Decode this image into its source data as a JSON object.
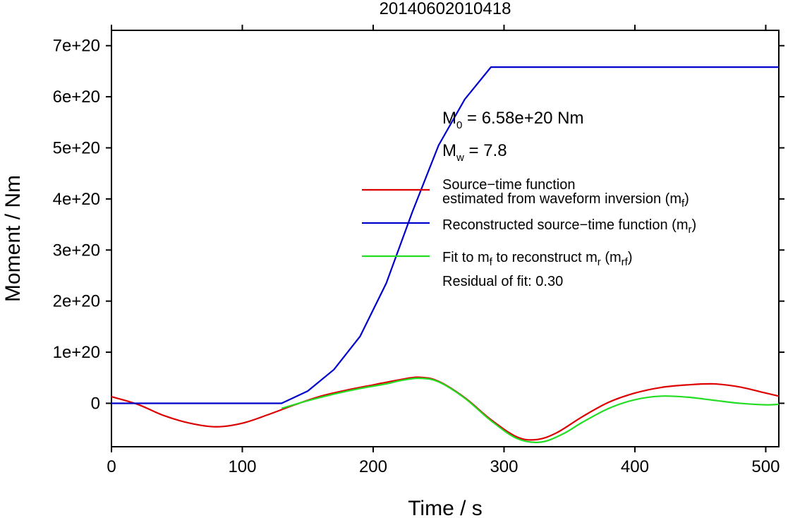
{
  "chart_data": {
    "type": "line",
    "title": "20140602010418",
    "xlabel": "Time / s",
    "ylabel": "Moment / Nm",
    "xlim": [
      0,
      510
    ],
    "ylim": [
      -8.5e+19,
      7.3e+20
    ],
    "xticks": [
      0,
      100,
      200,
      300,
      400,
      500
    ],
    "xtick_labels": [
      "0",
      "100",
      "200",
      "300",
      "400",
      "500"
    ],
    "yticks": [
      0,
      1e+20,
      2e+20,
      3e+20,
      4e+20,
      5e+20,
      6e+20,
      7e+20
    ],
    "ytick_labels": [
      "0",
      "1e+20",
      "2e+20",
      "3e+20",
      "4e+20",
      "5e+20",
      "6e+20",
      "7e+20"
    ],
    "grid": false,
    "annotations": {
      "m0_sym": "M",
      "m0_sub": "0",
      "m0_text": " = 6.58e+20 Nm",
      "mw_sym": "M",
      "mw_sub": "w",
      "mw_text": " = 7.8",
      "residual": "Residual of fit: 0.30"
    },
    "legend": {
      "position": "right",
      "entries": [
        {
          "color": "#dd0000",
          "line1": "Source−time function",
          "line2_pre": "estimated from waveform inversion (m",
          "line2_sub": "f",
          "line2_post": ")"
        },
        {
          "color": "#0000cc",
          "line1_pre": "Reconstructed source−time function (m",
          "line1_sub": "r",
          "line1_post": ")"
        },
        {
          "color": "#22dd22",
          "line1_a": "Fit to m",
          "line1_a_sub": "f",
          "line1_b": " to reconstruct m",
          "line1_b_sub": "r",
          "line1_c": " (m",
          "line1_c_sub": "rf",
          "line1_d": ")"
        }
      ]
    },
    "series": [
      {
        "color": "#dd0000",
        "x": [
          0,
          20,
          40,
          60,
          80,
          100,
          120,
          140,
          160,
          180,
          200,
          220,
          235,
          250,
          270,
          290,
          310,
          325,
          340,
          360,
          380,
          400,
          420,
          440,
          460,
          480,
          500,
          510
        ],
        "values": [
          1.3e+19,
          -2e+18,
          -2.4e+19,
          -3.9e+19,
          -4.6e+19,
          -3.9e+19,
          -2.2e+19,
          -3e+18,
          1.4e+19,
          2.6e+19,
          3.6e+19,
          4.6e+19,
          5.1e+19,
          4.3e+19,
          1.1e+19,
          -3.2e+19,
          -6.6e+19,
          -7.1e+19,
          -5.8e+19,
          -2.6e+19,
          2e+18,
          2e+19,
          3.1e+19,
          3.6e+19,
          3.8e+19,
          3.2e+19,
          2e+19,
          1.4e+19
        ]
      },
      {
        "color": "#0000cc",
        "x": [
          0,
          130,
          150,
          170,
          190,
          210,
          230,
          250,
          270,
          290,
          510
        ],
        "values": [
          0,
          0,
          2.4e+19,
          6.6e+19,
          1.31e+20,
          2.35e+20,
          3.75e+20,
          5.05e+20,
          5.95e+20,
          6.58e+20,
          6.58e+20
        ]
      },
      {
        "color": "#22dd22",
        "x": [
          130,
          150,
          170,
          190,
          210,
          220,
          235,
          250,
          270,
          290,
          310,
          328,
          345,
          360,
          380,
          400,
          420,
          440,
          460,
          480,
          500,
          510
        ],
        "values": [
          -1e+19,
          5e+18,
          1.8e+19,
          2.9e+19,
          3.8e+19,
          4.4e+19,
          4.9e+19,
          4.2e+19,
          1e+19,
          -3.4e+19,
          -6.9e+19,
          -7.6e+19,
          -6e+19,
          -3.7e+19,
          -1e+19,
          7e+18,
          1.4e+19,
          1.2e+19,
          6e+18,
          0,
          -3e+18,
          -2e+18
        ]
      }
    ]
  }
}
